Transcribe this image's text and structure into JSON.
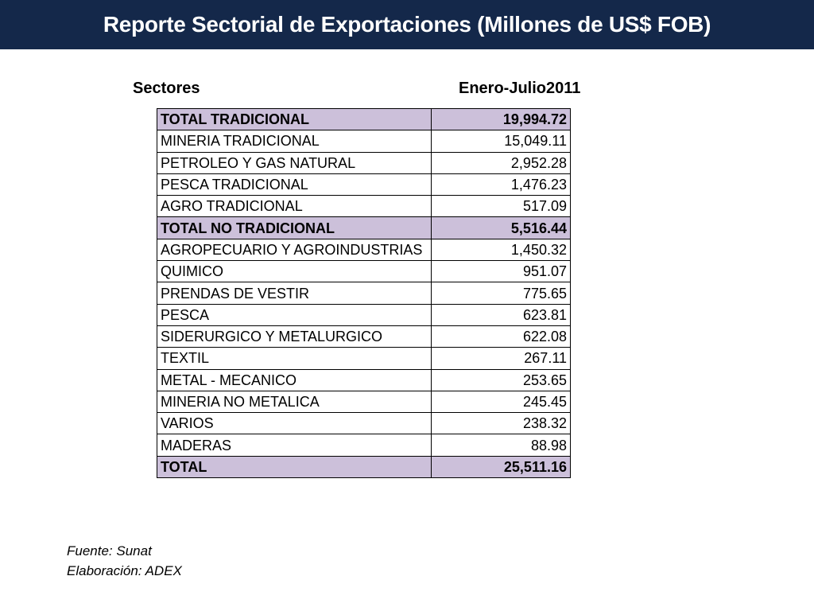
{
  "title": "Reporte Sectorial de Exportaciones (Millones de US$ FOB)",
  "headers": {
    "sectores": "Sectores",
    "periodo": "Enero-Julio2011"
  },
  "rows": [
    {
      "name": "TOTAL TRADICIONAL",
      "value": "19,994.72"
    },
    {
      "name": "MINERIA TRADICIONAL",
      "value": "15,049.11"
    },
    {
      "name": "PETROLEO Y GAS NATURAL",
      "value": "2,952.28"
    },
    {
      "name": "PESCA TRADICIONAL",
      "value": "1,476.23"
    },
    {
      "name": "AGRO TRADICIONAL",
      "value": "517.09"
    },
    {
      "name": "TOTAL NO TRADICIONAL",
      "value": "5,516.44"
    },
    {
      "name": "AGROPECUARIO Y AGROINDUSTRIAS",
      "value": "1,450.32"
    },
    {
      "name": "QUIMICO",
      "value": "951.07"
    },
    {
      "name": "PRENDAS DE VESTIR",
      "value": "775.65"
    },
    {
      "name": "PESCA",
      "value": "623.81"
    },
    {
      "name": "SIDERURGICO Y METALURGICO",
      "value": "622.08"
    },
    {
      "name": "TEXTIL",
      "value": "267.11"
    },
    {
      "name": "METAL - MECANICO",
      "value": "253.65"
    },
    {
      "name": "MINERIA NO METALICA",
      "value": "245.45"
    },
    {
      "name": "VARIOS",
      "value": "238.32"
    },
    {
      "name": "MADERAS",
      "value": "88.98"
    },
    {
      "name": "TOTAL",
      "value": "25,511.16"
    }
  ],
  "footer": {
    "source": "Fuente: Sunat",
    "credit": "Elaboración: ADEX"
  },
  "colors": {
    "title_bar": "#14284a",
    "total_row_fill": "#ccc0da"
  }
}
